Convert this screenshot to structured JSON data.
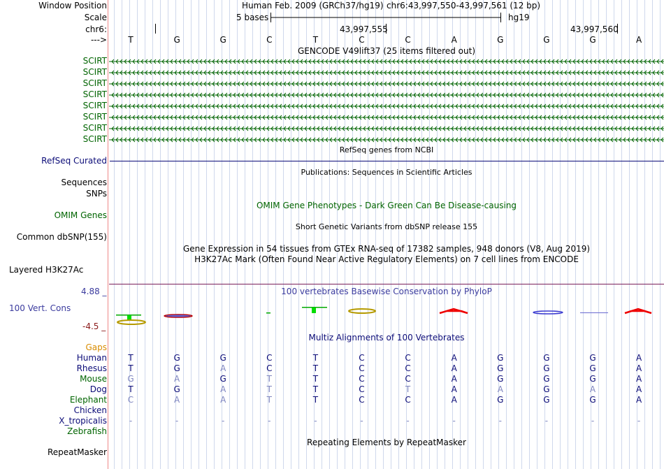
{
  "header": {
    "window_position_label": "Window Position",
    "scale_label": "Scale",
    "chrom_label": "chr6:",
    "strand_label": "--->",
    "assembly": "Human Feb. 2009 (GRCh37/hg19)",
    "position": "chr6:43,997,550-43,997,561 (12 bp)",
    "scale_text": "5 bases",
    "scale_db": "hg19",
    "coord_a": "43,997,555",
    "coord_b": "43,997,560"
  },
  "sequence": [
    "T",
    "G",
    "G",
    "C",
    "T",
    "C",
    "C",
    "A",
    "G",
    "G",
    "G",
    "A"
  ],
  "gencode": {
    "title": "GENCODE V49lift37 (25 items filtered out)",
    "items": [
      "SCIRT",
      "SCIRT",
      "SCIRT",
      "SCIRT",
      "SCIRT",
      "SCIRT",
      "SCIRT",
      "SCIRT"
    ],
    "color": "#006400"
  },
  "refseq": {
    "title": "RefSeq genes from NCBI",
    "label": "RefSeq Curated",
    "color": "#0c0c78"
  },
  "publications": {
    "title": "Publications: Sequences in Scientific Articles",
    "label_sequences": "Sequences"
  },
  "snps": {
    "label": "SNPs"
  },
  "omim": {
    "title": "OMIM Gene Phenotypes - Dark Green Can Be Disease-causing",
    "label": "OMIM Genes",
    "color": "#006400"
  },
  "dbsnp": {
    "title": "Short Genetic Variants from dbSNP release 155",
    "label": "Common dbSNP(155)"
  },
  "gtex": {
    "title": "Gene Expression in 54 tissues from GTEx RNA-seq of 17382 samples, 948 donors (V8, Aug 2019)"
  },
  "h3k27ac": {
    "title": "H3K27Ac Mark (Often Found Near Active Regulatory Elements) on 7 cell lines from ENCODE",
    "label": "Layered H3K27Ac"
  },
  "phylop": {
    "title": "100 vertebrates Basewise Conservation by PhyloP",
    "label": "100 Vert. Cons",
    "max": "4.88 _",
    "min": "-4.5 _",
    "color": "#3b3b9e"
  },
  "multiz": {
    "title": "Multiz Alignments of 100 Vertebrates",
    "gaps_label": "Gaps",
    "species": [
      {
        "name": "Human",
        "bases": [
          "T",
          "G",
          "G",
          "C",
          "T",
          "C",
          "C",
          "A",
          "G",
          "G",
          "G",
          "A"
        ],
        "color": "#0c0c78"
      },
      {
        "name": "Rhesus",
        "bases": [
          "T",
          "G",
          "A",
          "C",
          "T",
          "C",
          "C",
          "A",
          "G",
          "G",
          "G",
          "A"
        ],
        "color": "#0c0c78"
      },
      {
        "name": "Mouse",
        "bases": [
          "G",
          "A",
          "G",
          "T",
          "T",
          "C",
          "C",
          "A",
          "G",
          "G",
          "G",
          "A"
        ],
        "color": "#006400"
      },
      {
        "name": "Dog",
        "bases": [
          "T",
          "G",
          "A",
          "T",
          "T",
          "C",
          "T",
          "A",
          "A",
          "G",
          "A",
          "A"
        ],
        "color": "#0c0c78"
      },
      {
        "name": "Elephant",
        "bases": [
          "C",
          "A",
          "A",
          "T",
          "T",
          "C",
          "C",
          "A",
          "G",
          "G",
          "G",
          "A"
        ],
        "color": "#006400"
      },
      {
        "name": "Chicken",
        "bases": [
          "",
          "",
          "",
          "",
          "",
          "",
          "",
          "",
          "",
          "",
          "",
          ""
        ],
        "color": "#0c0c78"
      },
      {
        "name": "X_tropicalis",
        "bases": [
          "-",
          "-",
          "-",
          "-",
          "-",
          "-",
          "-",
          "-",
          "-",
          "-",
          "-",
          "-"
        ],
        "color": "#0c0c78"
      },
      {
        "name": "Zebrafish",
        "bases": [
          "",
          "",
          "",
          "",
          "",
          "",
          "",
          "",
          "",
          "",
          "",
          ""
        ],
        "color": "#006400"
      }
    ],
    "faded": [
      [
        0,
        0,
        0,
        0,
        0,
        0,
        0,
        0,
        0,
        0,
        0,
        0
      ],
      [
        0,
        0,
        1,
        0,
        0,
        0,
        0,
        0,
        0,
        0,
        0,
        0
      ],
      [
        1,
        1,
        0,
        1,
        0,
        0,
        0,
        0,
        0,
        0,
        0,
        0
      ],
      [
        0,
        0,
        1,
        1,
        0,
        0,
        1,
        0,
        1,
        0,
        1,
        0
      ],
      [
        1,
        1,
        1,
        1,
        0,
        0,
        0,
        0,
        0,
        0,
        0,
        0
      ],
      [
        0,
        0,
        0,
        0,
        0,
        0,
        0,
        0,
        0,
        0,
        0,
        0
      ],
      [
        1,
        1,
        1,
        1,
        1,
        1,
        1,
        1,
        1,
        1,
        1,
        1
      ],
      [
        0,
        0,
        0,
        0,
        0,
        0,
        0,
        0,
        0,
        0,
        0,
        0
      ]
    ],
    "gaps_color": "#d98c00"
  },
  "repeatmasker": {
    "title": "Repeating Elements by RepeatMasker",
    "label": "RepeatMasker"
  }
}
